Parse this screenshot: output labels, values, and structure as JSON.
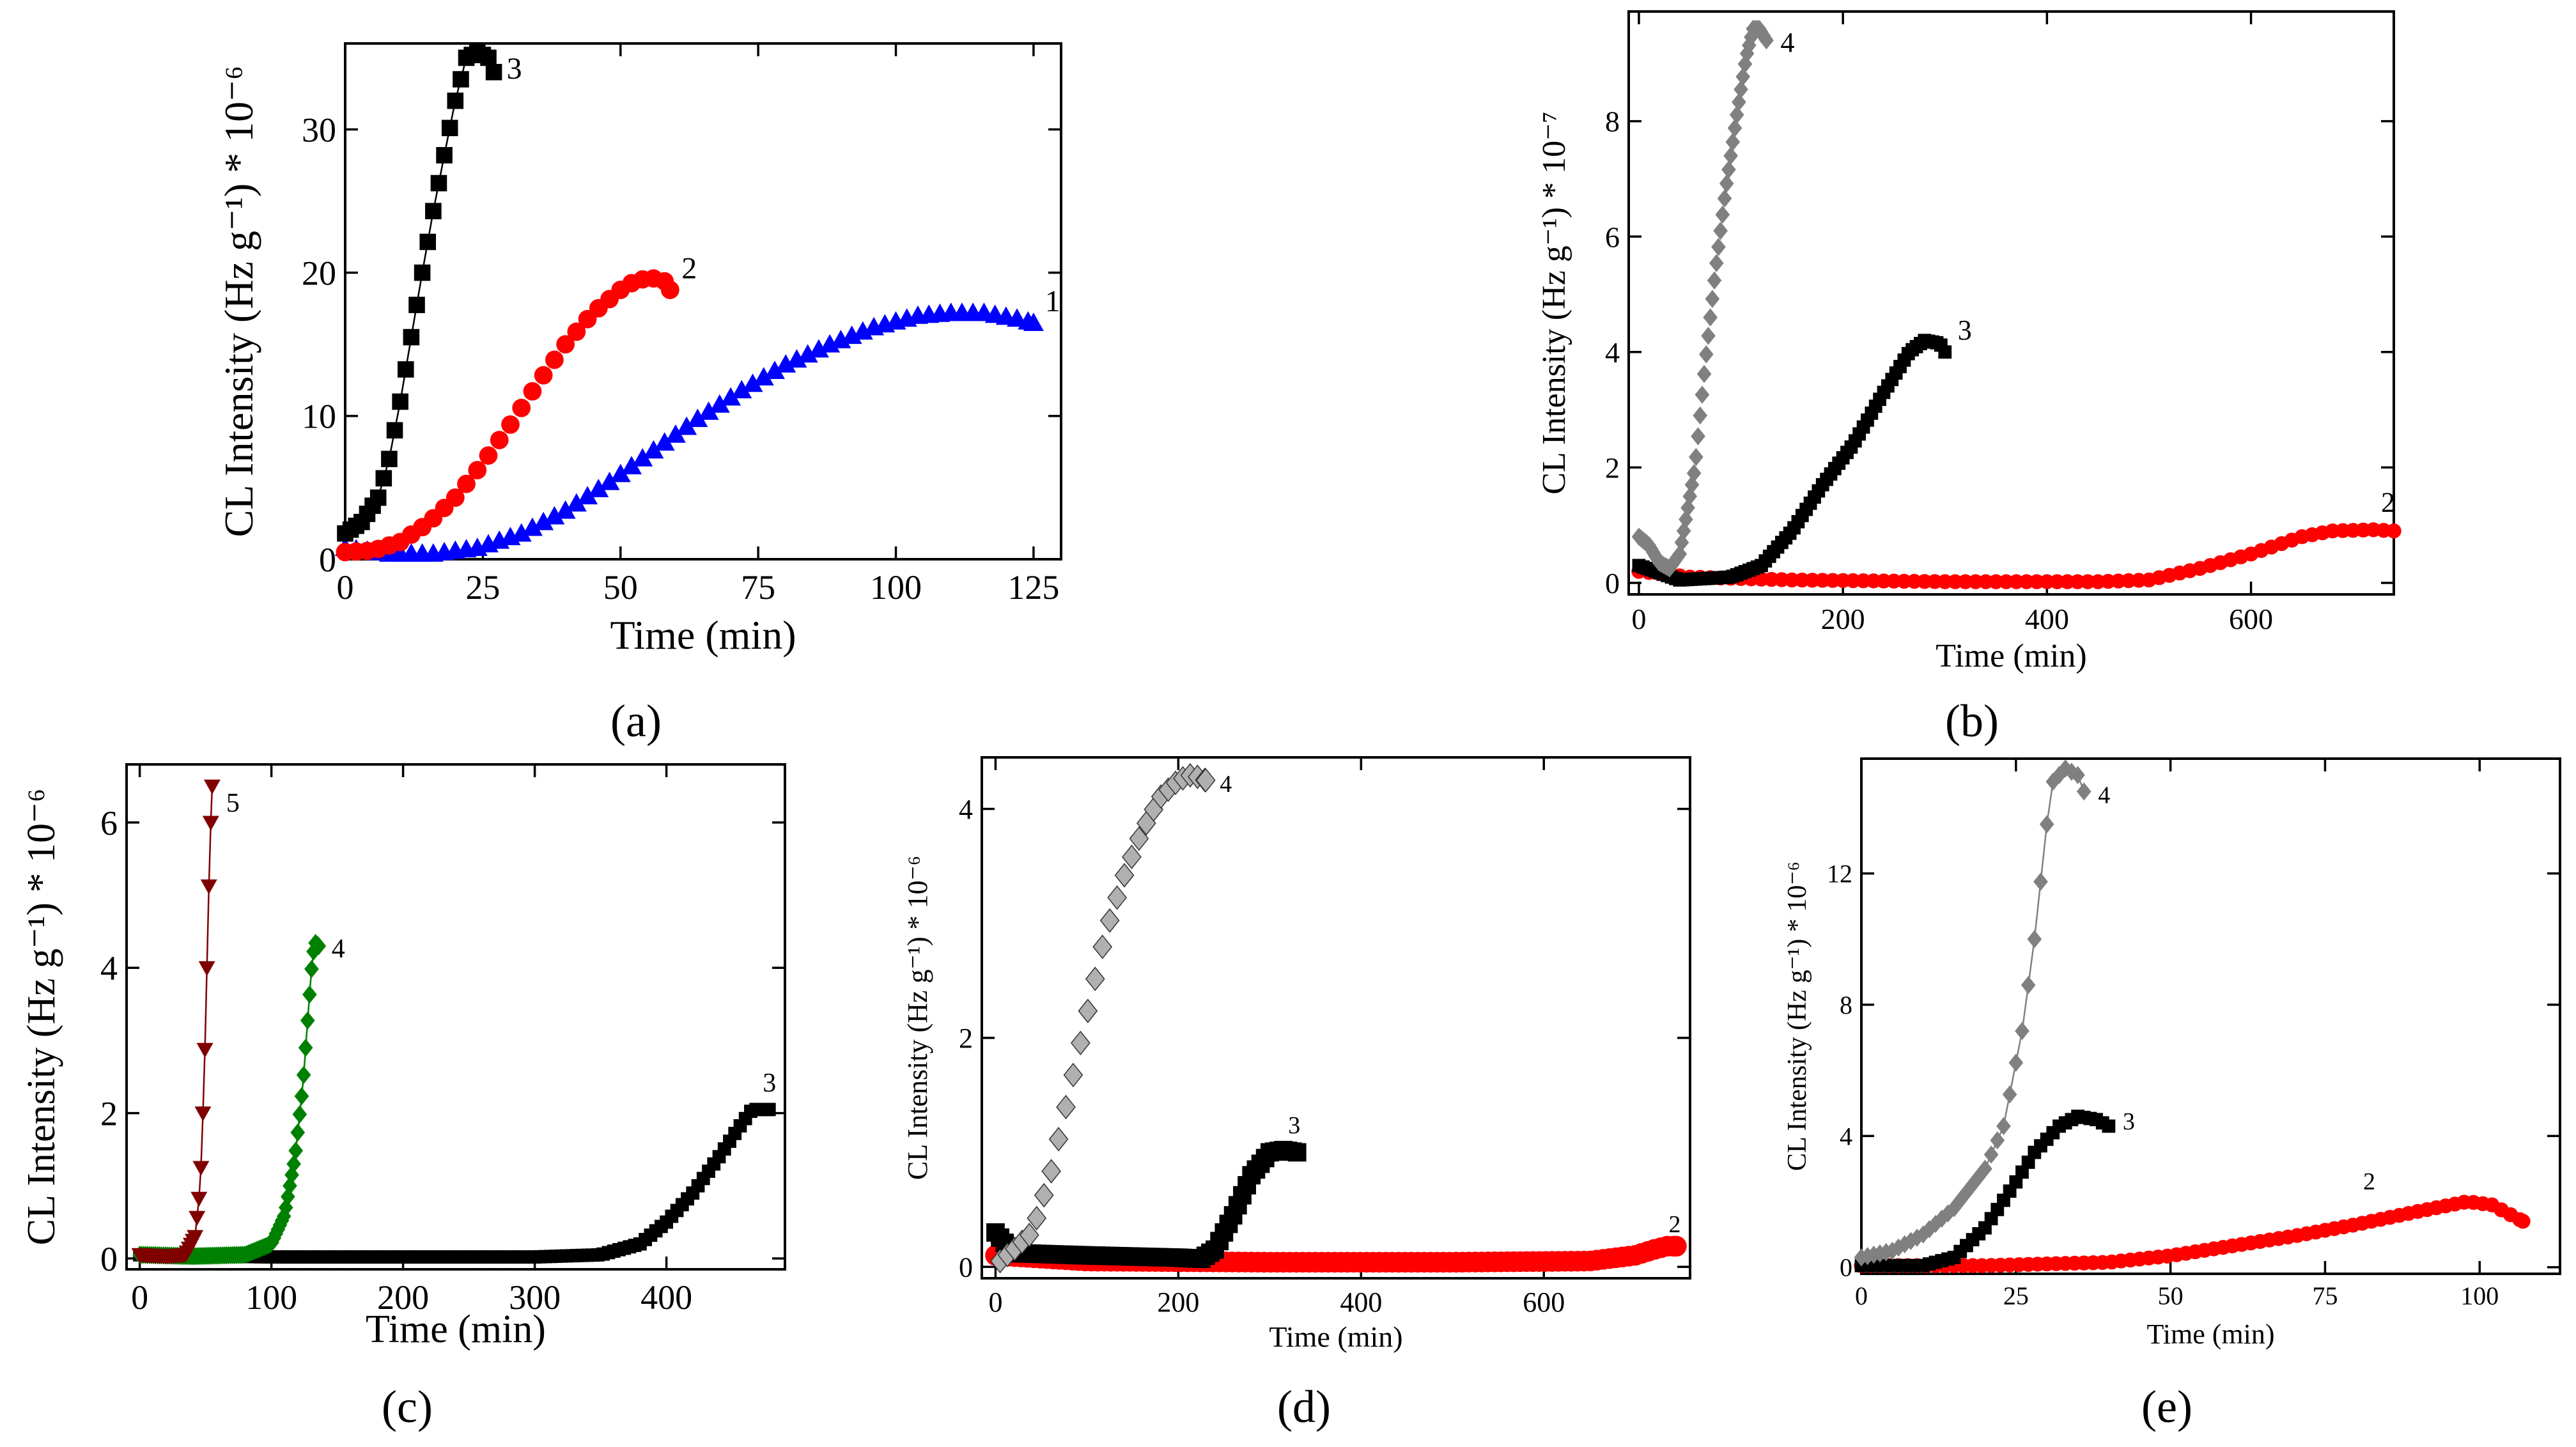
{
  "chart_data": [
    {
      "panel": "a",
      "type": "scatter",
      "xlabel": "Time (min)",
      "ylabel": "CL Intensity (Hz g⁻¹) * 10⁻⁶",
      "xlim": [
        0,
        130
      ],
      "ylim": [
        0,
        36
      ],
      "xticks": [
        0,
        25,
        50,
        75,
        100,
        125
      ],
      "yticks": [
        0,
        10,
        20,
        30
      ],
      "series": [
        {
          "label": "1",
          "color": "#0000ff",
          "marker": "triangle",
          "line": false,
          "points": [
            [
              0,
              0.8
            ],
            [
              8,
              0.4
            ],
            [
              16,
              0.4
            ],
            [
              24,
              0.8
            ],
            [
              32,
              1.8
            ],
            [
              40,
              3.4
            ],
            [
              48,
              5.4
            ],
            [
              56,
              7.6
            ],
            [
              64,
              9.8
            ],
            [
              72,
              11.8
            ],
            [
              80,
              13.6
            ],
            [
              88,
              15.0
            ],
            [
              96,
              16.2
            ],
            [
              104,
              17.0
            ],
            [
              110,
              17.2
            ],
            [
              116,
              17.2
            ],
            [
              122,
              16.8
            ],
            [
              125,
              16.5
            ]
          ],
          "step": 2
        },
        {
          "label": "2",
          "color": "#ff0000",
          "marker": "circle",
          "line": false,
          "points": [
            [
              0,
              0.5
            ],
            [
              5,
              0.6
            ],
            [
              10,
              1.2
            ],
            [
              15,
              2.5
            ],
            [
              20,
              4.3
            ],
            [
              25,
              6.7
            ],
            [
              30,
              9.4
            ],
            [
              35,
              12.3
            ],
            [
              40,
              15.0
            ],
            [
              45,
              17.2
            ],
            [
              50,
              18.8
            ],
            [
              53,
              19.5
            ],
            [
              56,
              19.6
            ],
            [
              58,
              19.4
            ],
            [
              59,
              18.8
            ]
          ],
          "step": 2
        },
        {
          "label": "3",
          "color": "#000000",
          "marker": "square",
          "line": true,
          "points": [
            [
              0,
              1.8
            ],
            [
              3,
              2.6
            ],
            [
              6,
              4.3
            ],
            [
              8,
              7.0
            ],
            [
              10,
              11.0
            ],
            [
              12,
              15.5
            ],
            [
              14,
              20.0
            ],
            [
              16,
              24.3
            ],
            [
              18,
              28.2
            ],
            [
              20,
              32.0
            ],
            [
              22,
              35.0
            ],
            [
              24,
              35.4
            ],
            [
              26,
              35.0
            ],
            [
              27,
              34.0
            ]
          ],
          "step": 1
        }
      ]
    },
    {
      "panel": "b",
      "type": "scatter",
      "xlabel": "Time (min)",
      "ylabel": "CL Intensity (Hz g⁻¹) * 10⁻⁷",
      "xlim": [
        -10,
        740
      ],
      "ylim": [
        -0.2,
        9.9
      ],
      "xticks": [
        0,
        200,
        400,
        600
      ],
      "yticks": [
        0,
        2,
        4,
        6,
        8
      ],
      "series": [
        {
          "label": "2",
          "color": "#ff0000",
          "marker": "circle",
          "line": false,
          "points": [
            [
              0,
              0.2
            ],
            [
              50,
              0.1
            ],
            [
              150,
              0.05
            ],
            [
              300,
              0.02
            ],
            [
              450,
              0.02
            ],
            [
              500,
              0.05
            ],
            [
              550,
              0.25
            ],
            [
              600,
              0.5
            ],
            [
              650,
              0.8
            ],
            [
              680,
              0.9
            ],
            [
              720,
              0.92
            ],
            [
              740,
              0.9
            ]
          ],
          "step": 10
        },
        {
          "label": "3",
          "color": "#000000",
          "marker": "square",
          "line": false,
          "points": [
            [
              0,
              0.3
            ],
            [
              40,
              0.05
            ],
            [
              90,
              0.1
            ],
            [
              120,
              0.3
            ],
            [
              150,
              0.9
            ],
            [
              180,
              1.7
            ],
            [
              210,
              2.4
            ],
            [
              240,
              3.3
            ],
            [
              265,
              4.0
            ],
            [
              280,
              4.2
            ],
            [
              295,
              4.15
            ],
            [
              300,
              4.0
            ]
          ],
          "step": 4
        },
        {
          "label": "4",
          "color": "#808080",
          "marker": "diamond",
          "line": false,
          "points": [
            [
              0,
              0.8
            ],
            [
              10,
              0.65
            ],
            [
              20,
              0.35
            ],
            [
              30,
              0.25
            ],
            [
              40,
              0.5
            ],
            [
              55,
              2.0
            ],
            [
              65,
              3.8
            ],
            [
              75,
              5.4
            ],
            [
              85,
              6.8
            ],
            [
              95,
              8.0
            ],
            [
              105,
              9.1
            ],
            [
              112,
              9.6
            ],
            [
              118,
              9.6
            ],
            [
              125,
              9.4
            ]
          ],
          "step": 2
        }
      ]
    },
    {
      "panel": "c",
      "type": "scatter",
      "xlabel": "Time (min)",
      "ylabel": "CL Intensity (Hz g⁻¹) * 10⁻⁶",
      "xlim": [
        -10,
        490
      ],
      "ylim": [
        -0.15,
        6.8
      ],
      "xticks": [
        0,
        100,
        200,
        300,
        400
      ],
      "yticks": [
        0,
        2,
        4,
        6
      ],
      "series": [
        {
          "label": "3",
          "color": "#000000",
          "marker": "square",
          "line": false,
          "points": [
            [
              0,
              0.05
            ],
            [
              100,
              0.02
            ],
            [
              200,
              0.02
            ],
            [
              300,
              0.02
            ],
            [
              350,
              0.05
            ],
            [
              380,
              0.2
            ],
            [
              400,
              0.5
            ],
            [
              420,
              0.9
            ],
            [
              440,
              1.4
            ],
            [
              455,
              1.8
            ],
            [
              465,
              2.05
            ],
            [
              478,
              2.05
            ]
          ],
          "step": 4
        },
        {
          "label": "4",
          "color": "#008000",
          "marker": "diamond",
          "line": true,
          "points": [
            [
              0,
              0.05
            ],
            [
              40,
              0.03
            ],
            [
              80,
              0.05
            ],
            [
              100,
              0.2
            ],
            [
              110,
              0.6
            ],
            [
              118,
              1.4
            ],
            [
              124,
              2.4
            ],
            [
              128,
              3.4
            ],
            [
              131,
              4.1
            ],
            [
              133,
              4.35
            ],
            [
              136,
              4.3
            ]
          ],
          "step": 1.5
        },
        {
          "label": "5",
          "color": "#800000",
          "marker": "triangle-down",
          "line": true,
          "points": [
            [
              0,
              0.05
            ],
            [
              20,
              0.03
            ],
            [
              35,
              0.05
            ],
            [
              42,
              0.3
            ],
            [
              46,
              1.0
            ],
            [
              49,
              2.5
            ],
            [
              51,
              4.0
            ],
            [
              53,
              5.5
            ],
            [
              55,
              6.5
            ]
          ],
          "step": 1.5
        }
      ]
    },
    {
      "panel": "d",
      "type": "scatter",
      "xlabel": "Time (min)",
      "ylabel": "CL Intensity (Hz g⁻¹) * 10⁻⁶",
      "xlim": [
        -15,
        760
      ],
      "ylim": [
        -0.1,
        4.45
      ],
      "xticks": [
        0,
        200,
        400,
        600
      ],
      "yticks": [
        0,
        2,
        4
      ],
      "series": [
        {
          "label": "2",
          "color": "#ff0000",
          "marker": "circle",
          "line": false,
          "points": [
            [
              0,
              0.1
            ],
            [
              100,
              0.05
            ],
            [
              300,
              0.04
            ],
            [
              500,
              0.04
            ],
            [
              650,
              0.05
            ],
            [
              700,
              0.1
            ],
            [
              720,
              0.15
            ],
            [
              735,
              0.18
            ],
            [
              745,
              0.18
            ]
          ],
          "step": 7
        },
        {
          "label": "3",
          "color": "#000000",
          "marker": "square",
          "line": false,
          "points": [
            [
              0,
              0.3
            ],
            [
              20,
              0.12
            ],
            [
              100,
              0.1
            ],
            [
              200,
              0.08
            ],
            [
              225,
              0.07
            ],
            [
              240,
              0.15
            ],
            [
              260,
              0.45
            ],
            [
              280,
              0.8
            ],
            [
              300,
              1.0
            ],
            [
              315,
              1.02
            ],
            [
              330,
              1.0
            ]
          ],
          "step": 5
        },
        {
          "label": "4",
          "color": "#b0b0b0",
          "marker": "diamond",
          "line": false,
          "points": [
            [
              5,
              0.05
            ],
            [
              20,
              0.15
            ],
            [
              40,
              0.3
            ],
            [
              60,
              0.8
            ],
            [
              80,
              1.5
            ],
            [
              100,
              2.2
            ],
            [
              120,
              2.9
            ],
            [
              140,
              3.4
            ],
            [
              160,
              3.8
            ],
            [
              180,
              4.1
            ],
            [
              200,
              4.25
            ],
            [
              215,
              4.3
            ],
            [
              230,
              4.25
            ]
          ],
          "step": 8
        }
      ]
    },
    {
      "panel": "e",
      "type": "scatter",
      "xlabel": "Time (min)",
      "ylabel": "CL Intensity (Hz g⁻¹) * 10⁻⁶",
      "xlim": [
        0,
        113
      ],
      "ylim": [
        -0.2,
        15.5
      ],
      "xticks": [
        0,
        25,
        50,
        75,
        100
      ],
      "yticks": [
        0,
        4,
        8,
        12
      ],
      "series": [
        {
          "label": "2",
          "color": "#ff0000",
          "marker": "circle",
          "line": true,
          "points": [
            [
              0,
              0.05
            ],
            [
              20,
              0.05
            ],
            [
              40,
              0.15
            ],
            [
              50,
              0.35
            ],
            [
              60,
              0.65
            ],
            [
              70,
              0.95
            ],
            [
              80,
              1.3
            ],
            [
              90,
              1.7
            ],
            [
              98,
              2.0
            ],
            [
              102,
              1.9
            ],
            [
              107,
              1.4
            ]
          ],
          "step": 1.5
        },
        {
          "label": "3",
          "color": "#000000",
          "marker": "square",
          "line": true,
          "points": [
            [
              0,
              0.05
            ],
            [
              10,
              0.05
            ],
            [
              15,
              0.3
            ],
            [
              20,
              1.2
            ],
            [
              25,
              2.6
            ],
            [
              28,
              3.5
            ],
            [
              32,
              4.3
            ],
            [
              35,
              4.6
            ],
            [
              38,
              4.5
            ],
            [
              40,
              4.3
            ]
          ],
          "step": 1
        },
        {
          "label": "4",
          "color": "#808080",
          "marker": "diamond",
          "line": true,
          "points": [
            [
              0,
              0.3
            ],
            [
              5,
              0.5
            ],
            [
              10,
              1.0
            ],
            [
              15,
              1.8
            ],
            [
              20,
              3.0
            ],
            [
              23,
              4.3
            ],
            [
              26,
              7.2
            ],
            [
              28,
              10.0
            ],
            [
              30,
              13.5
            ],
            [
              31,
              14.8
            ],
            [
              33,
              15.2
            ],
            [
              35,
              15.0
            ],
            [
              36,
              14.5
            ]
          ],
          "step": 1
        }
      ]
    }
  ],
  "panel_labels": [
    "(a)",
    "(b)",
    "(c)",
    "(d)",
    "(e)"
  ]
}
